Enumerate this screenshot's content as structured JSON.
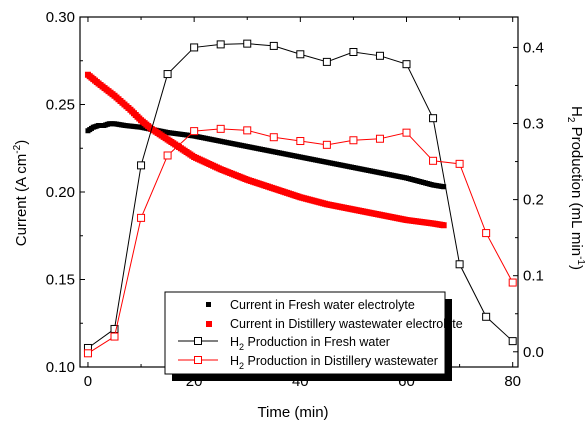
{
  "chart_data": {
    "type": "line",
    "xlabel": "Time (min)",
    "ylabel_left": {
      "text": "Current (A cm",
      "sup": "-2",
      "end": ")"
    },
    "ylabel_right": {
      "text": "H",
      "sub": "2",
      "rest": " Production (mL min",
      "sup": "-1",
      "end": ")"
    },
    "x_ticks": [
      "0",
      "20",
      "40",
      "60",
      "80"
    ],
    "y_left_ticks": [
      "0.10",
      "0.15",
      "0.20",
      "0.25",
      "0.30"
    ],
    "y_right_ticks": [
      "0.0",
      "0.1",
      "0.2",
      "0.3",
      "0.4"
    ],
    "xlim": [
      -1.5,
      81
    ],
    "ylim_left": [
      0.1,
      0.3
    ],
    "ylim_right": [
      -0.02,
      0.44
    ],
    "grid": false,
    "legend_position": "bottom-center",
    "current_series": [
      {
        "name": "Current in Fresh water electrolyte",
        "color": "#000000",
        "axis": "left",
        "x": [
          0,
          1,
          2,
          3,
          4,
          5,
          7,
          10,
          15,
          20,
          25,
          30,
          35,
          40,
          45,
          50,
          55,
          60,
          65,
          67
        ],
        "y": [
          0.235,
          0.237,
          0.238,
          0.238,
          0.239,
          0.239,
          0.238,
          0.237,
          0.234,
          0.232,
          0.229,
          0.226,
          0.223,
          0.22,
          0.217,
          0.214,
          0.211,
          0.208,
          0.204,
          0.203
        ]
      },
      {
        "name": "Current in Distillery wastewater electrolyte",
        "color": "#ff0000",
        "axis": "left",
        "x": [
          0,
          2,
          5,
          8,
          10,
          12,
          15,
          20,
          25,
          30,
          35,
          40,
          45,
          50,
          55,
          60,
          65,
          67
        ],
        "y": [
          0.267,
          0.262,
          0.255,
          0.247,
          0.241,
          0.236,
          0.23,
          0.22,
          0.213,
          0.207,
          0.202,
          0.197,
          0.193,
          0.19,
          0.187,
          0.184,
          0.182,
          0.181
        ]
      }
    ],
    "production_series": [
      {
        "name": "Production in Fresh water",
        "label_prefix": "H",
        "label_sub": "2",
        "color": "#000000",
        "axis": "right",
        "x": [
          0,
          5,
          10,
          15,
          20,
          25,
          30,
          35,
          40,
          45,
          50,
          55,
          60,
          65,
          70,
          75,
          80
        ],
        "y": [
          0.005,
          0.03,
          0.245,
          0.365,
          0.4,
          0.404,
          0.405,
          0.402,
          0.391,
          0.381,
          0.394,
          0.389,
          0.378,
          0.307,
          0.115,
          0.046,
          0.014
        ]
      },
      {
        "name": "Production in Distillery wastewater",
        "label_prefix": "H",
        "label_sub": "2",
        "color": "#ff0000",
        "axis": "right",
        "x": [
          0,
          5,
          10,
          15,
          20,
          25,
          30,
          35,
          40,
          45,
          50,
          55,
          60,
          65,
          70,
          75,
          80
        ],
        "y": [
          -0.002,
          0.02,
          0.176,
          0.258,
          0.29,
          0.293,
          0.291,
          0.282,
          0.277,
          0.272,
          0.278,
          0.28,
          0.288,
          0.251,
          0.247,
          0.156,
          0.091
        ]
      }
    ]
  }
}
